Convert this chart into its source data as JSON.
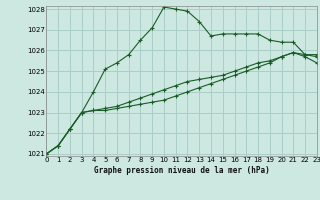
{
  "title": "Graphe pression niveau de la mer (hPa)",
  "background_color": "#cce8e0",
  "grid_color": "#aacfc8",
  "line_color": "#1a5c28",
  "x_min": 0,
  "x_max": 23,
  "y_min": 1021,
  "y_max": 1028,
  "x_ticks": [
    0,
    1,
    2,
    3,
    4,
    5,
    6,
    7,
    8,
    9,
    10,
    11,
    12,
    13,
    14,
    15,
    16,
    17,
    18,
    19,
    20,
    21,
    22,
    23
  ],
  "y_ticks": [
    1021,
    1022,
    1023,
    1024,
    1025,
    1026,
    1027,
    1028
  ],
  "series1": [
    1021.0,
    1021.4,
    1022.2,
    1023.0,
    1024.0,
    1025.1,
    1025.4,
    1025.8,
    1026.5,
    1027.1,
    1028.1,
    1028.0,
    1027.9,
    1027.4,
    1026.7,
    1026.8,
    1026.8,
    1026.8,
    1026.8,
    1026.5,
    1026.4,
    1026.4,
    1025.8,
    1025.8
  ],
  "series2": [
    1021.0,
    1021.4,
    1022.2,
    1023.0,
    1023.1,
    1023.1,
    1023.2,
    1023.3,
    1023.4,
    1023.5,
    1023.6,
    1023.8,
    1024.0,
    1024.2,
    1024.4,
    1024.6,
    1024.8,
    1025.0,
    1025.2,
    1025.4,
    1025.7,
    1025.9,
    1025.8,
    1025.7
  ],
  "series3": [
    1021.0,
    1021.4,
    1022.2,
    1023.0,
    1023.1,
    1023.2,
    1023.3,
    1023.5,
    1023.7,
    1023.9,
    1024.1,
    1024.3,
    1024.5,
    1024.6,
    1024.7,
    1024.8,
    1025.0,
    1025.2,
    1025.4,
    1025.5,
    1025.7,
    1025.9,
    1025.7,
    1025.4
  ],
  "figwidth": 3.2,
  "figheight": 2.0,
  "dpi": 100
}
